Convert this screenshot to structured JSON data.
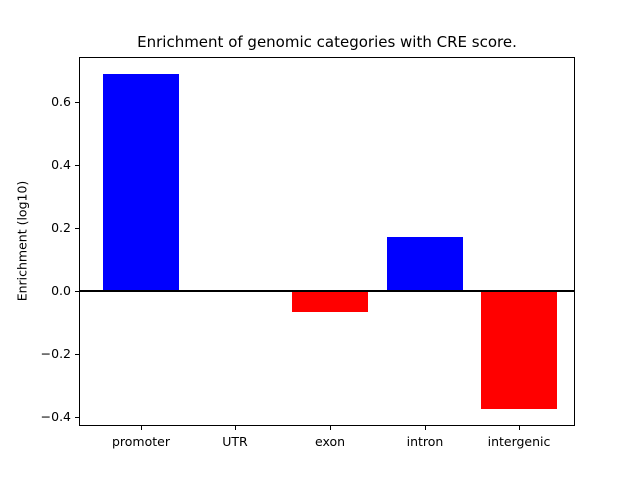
{
  "chart_data": {
    "type": "bar",
    "title": "Enrichment of genomic categories with CRE score.",
    "ylabel": "Enrichment (log10)",
    "xlabel": "",
    "categories": [
      "promoter",
      "UTR",
      "exon",
      "intron",
      "intergenic"
    ],
    "values": [
      0.69,
      0.0,
      -0.067,
      0.173,
      -0.375
    ],
    "bar_colors": [
      "#0000ff",
      "#0000ff",
      "#ff0000",
      "#0000ff",
      "#ff0000"
    ],
    "positive_color": "#0000ff",
    "negative_color": "#ff0000",
    "ylim": [
      -0.425,
      0.74
    ],
    "yticks": [
      0.6,
      0.4,
      0.2,
      0.0,
      -0.2,
      -0.4
    ],
    "ytick_labels": [
      "0.6",
      "0.4",
      "0.2",
      "0.0",
      "−0.2",
      "−0.4"
    ],
    "zero_line": true,
    "grid": false,
    "legend": "none",
    "background_color": "#ffffff",
    "axis_color": "#000000"
  }
}
